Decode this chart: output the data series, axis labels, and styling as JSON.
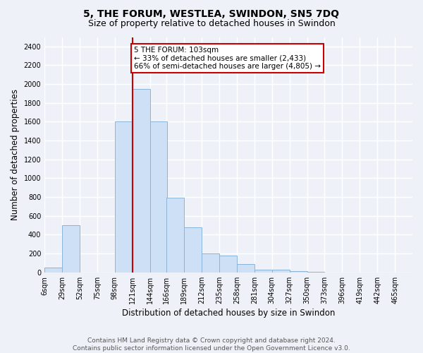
{
  "title": "5, THE FORUM, WESTLEA, SWINDON, SN5 7DQ",
  "subtitle": "Size of property relative to detached houses in Swindon",
  "xlabel": "Distribution of detached houses by size in Swindon",
  "ylabel": "Number of detached properties",
  "footer_line1": "Contains HM Land Registry data © Crown copyright and database right 2024.",
  "footer_line2": "Contains public sector information licensed under the Open Government Licence v3.0.",
  "bar_color": "#cde0f5",
  "bar_edge_color": "#8ab4d8",
  "vline_color": "#cc0000",
  "annotation_text": "5 THE FORUM: 103sqm\n← 33% of detached houses are smaller (2,433)\n66% of semi-detached houses are larger (4,805) →",
  "annotation_box_color": "#cc0000",
  "categories": [
    "6sqm",
    "29sqm",
    "52sqm",
    "75sqm",
    "98sqm",
    "121sqm",
    "144sqm",
    "166sqm",
    "189sqm",
    "212sqm",
    "235sqm",
    "258sqm",
    "281sqm",
    "304sqm",
    "327sqm",
    "350sqm",
    "373sqm",
    "396sqm",
    "419sqm",
    "442sqm",
    "465sqm"
  ],
  "bin_lefts": [
    6,
    29,
    52,
    75,
    98,
    121,
    144,
    166,
    189,
    212,
    235,
    258,
    281,
    304,
    327,
    350,
    373,
    396,
    419,
    442,
    465
  ],
  "values": [
    50,
    500,
    0,
    0,
    1600,
    1950,
    1600,
    790,
    475,
    200,
    175,
    85,
    30,
    25,
    10,
    5,
    0,
    0,
    0,
    0,
    0
  ],
  "ylim": [
    0,
    2500
  ],
  "yticks": [
    0,
    200,
    400,
    600,
    800,
    1000,
    1200,
    1400,
    1600,
    1800,
    2000,
    2200,
    2400
  ],
  "background_color": "#eef2f8",
  "grid_color": "#ffffff",
  "title_fontsize": 10,
  "subtitle_fontsize": 9,
  "axis_label_fontsize": 8.5,
  "tick_fontsize": 7,
  "footer_fontsize": 6.5,
  "annotation_fontsize": 7.5
}
